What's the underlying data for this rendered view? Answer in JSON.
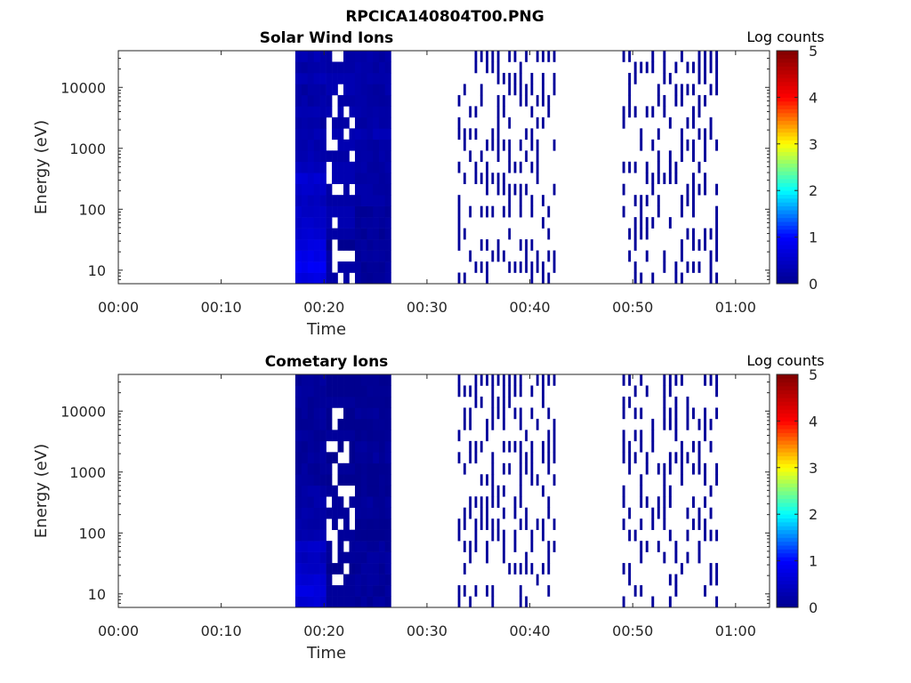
{
  "figure_title": "RPCICA140804T00.PNG",
  "colors": {
    "colormap": [
      "#00008f",
      "#0000ff",
      "#00ffff",
      "#ffff00",
      "#ff0000",
      "#800000"
    ],
    "axis": "#262626",
    "background": "#ffffff"
  },
  "chart_data": [
    {
      "type": "heatmap",
      "title": "Solar Wind Ions",
      "xlabel": "Time",
      "ylabel": "Energy (eV)",
      "x_ticks": [
        "00:00",
        "00:10",
        "00:20",
        "00:30",
        "00:40",
        "00:50",
        "01:00"
      ],
      "x_tick_minutes": [
        0,
        10,
        20,
        30,
        40,
        50,
        60
      ],
      "xlim_minutes": [
        0,
        63.3
      ],
      "y_ticks": [
        "10",
        "100",
        "1000",
        "10000"
      ],
      "y_tick_values": [
        10,
        100,
        1000,
        10000
      ],
      "ylim": [
        6,
        40000
      ],
      "y_scale": "log",
      "colorbar": {
        "label": "Log counts",
        "ticks": [
          "0",
          "1",
          "2",
          "3",
          "4",
          "5"
        ],
        "range": [
          0,
          5
        ]
      },
      "segments": [
        {
          "t_start_min": 17.2,
          "t_end_min": 20.2,
          "log_counts": [
            0.7,
            0.9,
            0.8,
            0.7,
            0.6,
            0.5,
            0.5,
            0.4,
            0.5,
            0.6,
            0.4,
            0.3,
            0.3,
            0.3,
            0.2,
            0.3,
            0.2,
            0.2,
            0.3,
            0.2,
            0.3
          ]
        },
        {
          "t_start_min": 20.2,
          "t_end_min": 23.0,
          "coverage": "partial",
          "log_counts": [
            0.2,
            0.2,
            0.2,
            0.0,
            0.2,
            0.3,
            0.3,
            0.2,
            0.2,
            0.3,
            0.3,
            0.2,
            0.3,
            0.3,
            0.2,
            0.3,
            0.2,
            0.3,
            0.3,
            0.2,
            0.2
          ]
        },
        {
          "t_start_min": 23.0,
          "t_end_min": 26.5,
          "log_counts": [
            0.1,
            0.1,
            0.1,
            0.1,
            0.1,
            0.1,
            0.1,
            0.2,
            0.2,
            0.2,
            0.2,
            0.2,
            0.2,
            0.3,
            0.2,
            0.2,
            0.2,
            0.2,
            0.2,
            0.2,
            0.2
          ]
        },
        {
          "t_start_min": 33.0,
          "t_end_min": 42.8,
          "coverage": "sparse",
          "log_counts": [
            0.1,
            0.1,
            0.1,
            0.1,
            0.1,
            0.1,
            0.1,
            0.1,
            0.1,
            0.1,
            0.1,
            0.1,
            0.1,
            0.1,
            0.1,
            0.1,
            0.1,
            0.1,
            0.1,
            0.1,
            0.1
          ]
        },
        {
          "t_start_min": 49.0,
          "t_end_min": 58.6,
          "coverage": "sparse",
          "log_counts": [
            0.1,
            0.1,
            0.1,
            0.1,
            0.1,
            0.1,
            0.1,
            0.1,
            0.1,
            0.1,
            0.1,
            0.1,
            0.1,
            0.1,
            0.1,
            0.1,
            0.1,
            0.1,
            0.1,
            0.1,
            0.1
          ]
        }
      ]
    },
    {
      "type": "heatmap",
      "title": "Cometary Ions",
      "xlabel": "Time",
      "ylabel": "Energy (eV)",
      "x_ticks": [
        "00:00",
        "00:10",
        "00:20",
        "00:30",
        "00:40",
        "00:50",
        "01:00"
      ],
      "x_tick_minutes": [
        0,
        10,
        20,
        30,
        40,
        50,
        60
      ],
      "xlim_minutes": [
        0,
        63.3
      ],
      "y_ticks": [
        "10",
        "100",
        "1000",
        "10000"
      ],
      "y_tick_values": [
        10,
        100,
        1000,
        10000
      ],
      "ylim": [
        6,
        40000
      ],
      "y_scale": "log",
      "colorbar": {
        "label": "Log counts",
        "ticks": [
          "0",
          "1",
          "2",
          "3",
          "4",
          "5"
        ],
        "range": [
          0,
          5
        ]
      },
      "segments": [
        {
          "t_start_min": 17.2,
          "t_end_min": 20.2,
          "log_counts": [
            0.6,
            0.7,
            0.6,
            0.5,
            0.4,
            0.5,
            0.3,
            0.2,
            0.2,
            0.2,
            0.2,
            0.1,
            0.1,
            0.1,
            0.1,
            0.1,
            0.1,
            0.1,
            0.1,
            0.1,
            0.1
          ]
        },
        {
          "t_start_min": 20.2,
          "t_end_min": 23.0,
          "coverage": "partial",
          "log_counts": [
            0.1,
            0.1,
            0.1,
            0.0,
            0.1,
            0.1,
            0.1,
            0.1,
            0.1,
            0.1,
            0.1,
            0.0,
            0.1,
            0.0,
            0.0,
            0.1,
            0.0,
            0.0,
            0.1,
            0.0,
            0.0
          ]
        },
        {
          "t_start_min": 23.0,
          "t_end_min": 26.5,
          "log_counts": [
            0.1,
            0.1,
            0.1,
            0.1,
            0.1,
            0.1,
            0.0,
            0.0,
            0.1,
            0.1,
            0.0,
            0.0,
            0.0,
            0.1,
            0.1,
            0.0,
            0.0,
            0.1,
            0.0,
            0.0,
            0.0
          ]
        },
        {
          "t_start_min": 33.0,
          "t_end_min": 42.8,
          "coverage": "sparse",
          "log_counts": [
            0.1,
            0.1,
            0.1,
            0.1,
            0.1,
            0.1,
            0.1,
            0.1,
            0.1,
            0.1,
            0.1,
            0.1,
            0.1,
            0.1,
            0.1,
            0.1,
            0.1,
            0.1,
            0.1,
            0.1,
            0.1
          ]
        },
        {
          "t_start_min": 49.0,
          "t_end_min": 58.6,
          "coverage": "sparse",
          "log_counts": [
            0.1,
            0.1,
            0.1,
            0.1,
            0.1,
            0.1,
            0.1,
            0.1,
            0.1,
            0.1,
            0.1,
            0.1,
            0.1,
            0.1,
            0.1,
            0.1,
            0.1,
            0.1,
            0.1,
            0.1,
            0.1
          ]
        }
      ]
    }
  ]
}
